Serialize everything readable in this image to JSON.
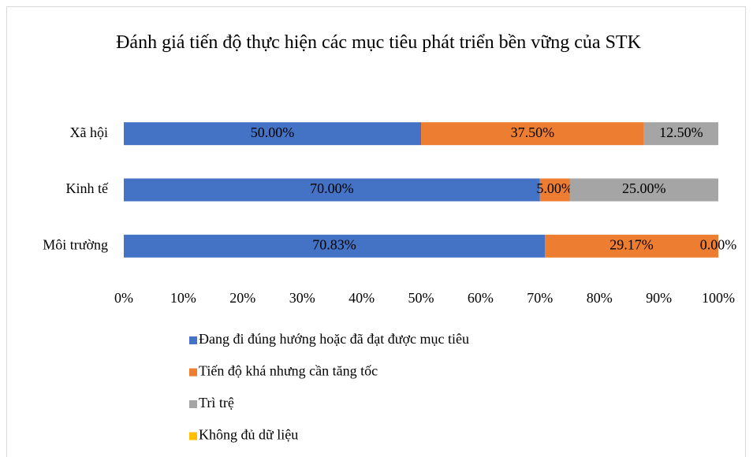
{
  "chart_data": {
    "type": "stacked-bar-horizontal",
    "title": "Đánh giá tiến độ thực hiện các mục tiêu phát triển bền vững của STK",
    "categories": [
      "Xã hội",
      "Kinh tế",
      "Môi trường"
    ],
    "series": [
      {
        "name": "Đang đi đúng hướng hoặc đã đạt được mục tiêu",
        "color": "#4472c4",
        "values": [
          50,
          70,
          70.83
        ],
        "value_labels": [
          "50.00%",
          "70.00%",
          "70.83%"
        ]
      },
      {
        "name": "Tiến độ khá nhưng cần tăng tốc",
        "color": "#ed7d31",
        "values": [
          37.5,
          5,
          29.17
        ],
        "value_labels": [
          "37.50%",
          "5.00%",
          "29.17%"
        ]
      },
      {
        "name": "Trì trệ",
        "color": "#a5a5a5",
        "values": [
          12.5,
          25,
          0
        ],
        "value_labels": [
          "12.50%",
          "25.00%",
          "0.00%"
        ]
      },
      {
        "name": "Không đủ dữ liệu",
        "color": "#ffc000",
        "values": [
          0,
          0,
          0
        ]
      }
    ],
    "xlim": [
      0,
      100
    ],
    "xticks": [
      {
        "value": 0,
        "label": "0%"
      },
      {
        "value": 10,
        "label": "10%"
      },
      {
        "value": 20,
        "label": "20%"
      },
      {
        "value": 30,
        "label": "30%"
      },
      {
        "value": 40,
        "label": "40%"
      },
      {
        "value": 50,
        "label": "50%"
      },
      {
        "value": 60,
        "label": "60%"
      },
      {
        "value": 70,
        "label": "70%"
      },
      {
        "value": 80,
        "label": "80%"
      },
      {
        "value": 90,
        "label": "90%"
      },
      {
        "value": 100,
        "label": "100%"
      }
    ],
    "legend": "bottom"
  }
}
